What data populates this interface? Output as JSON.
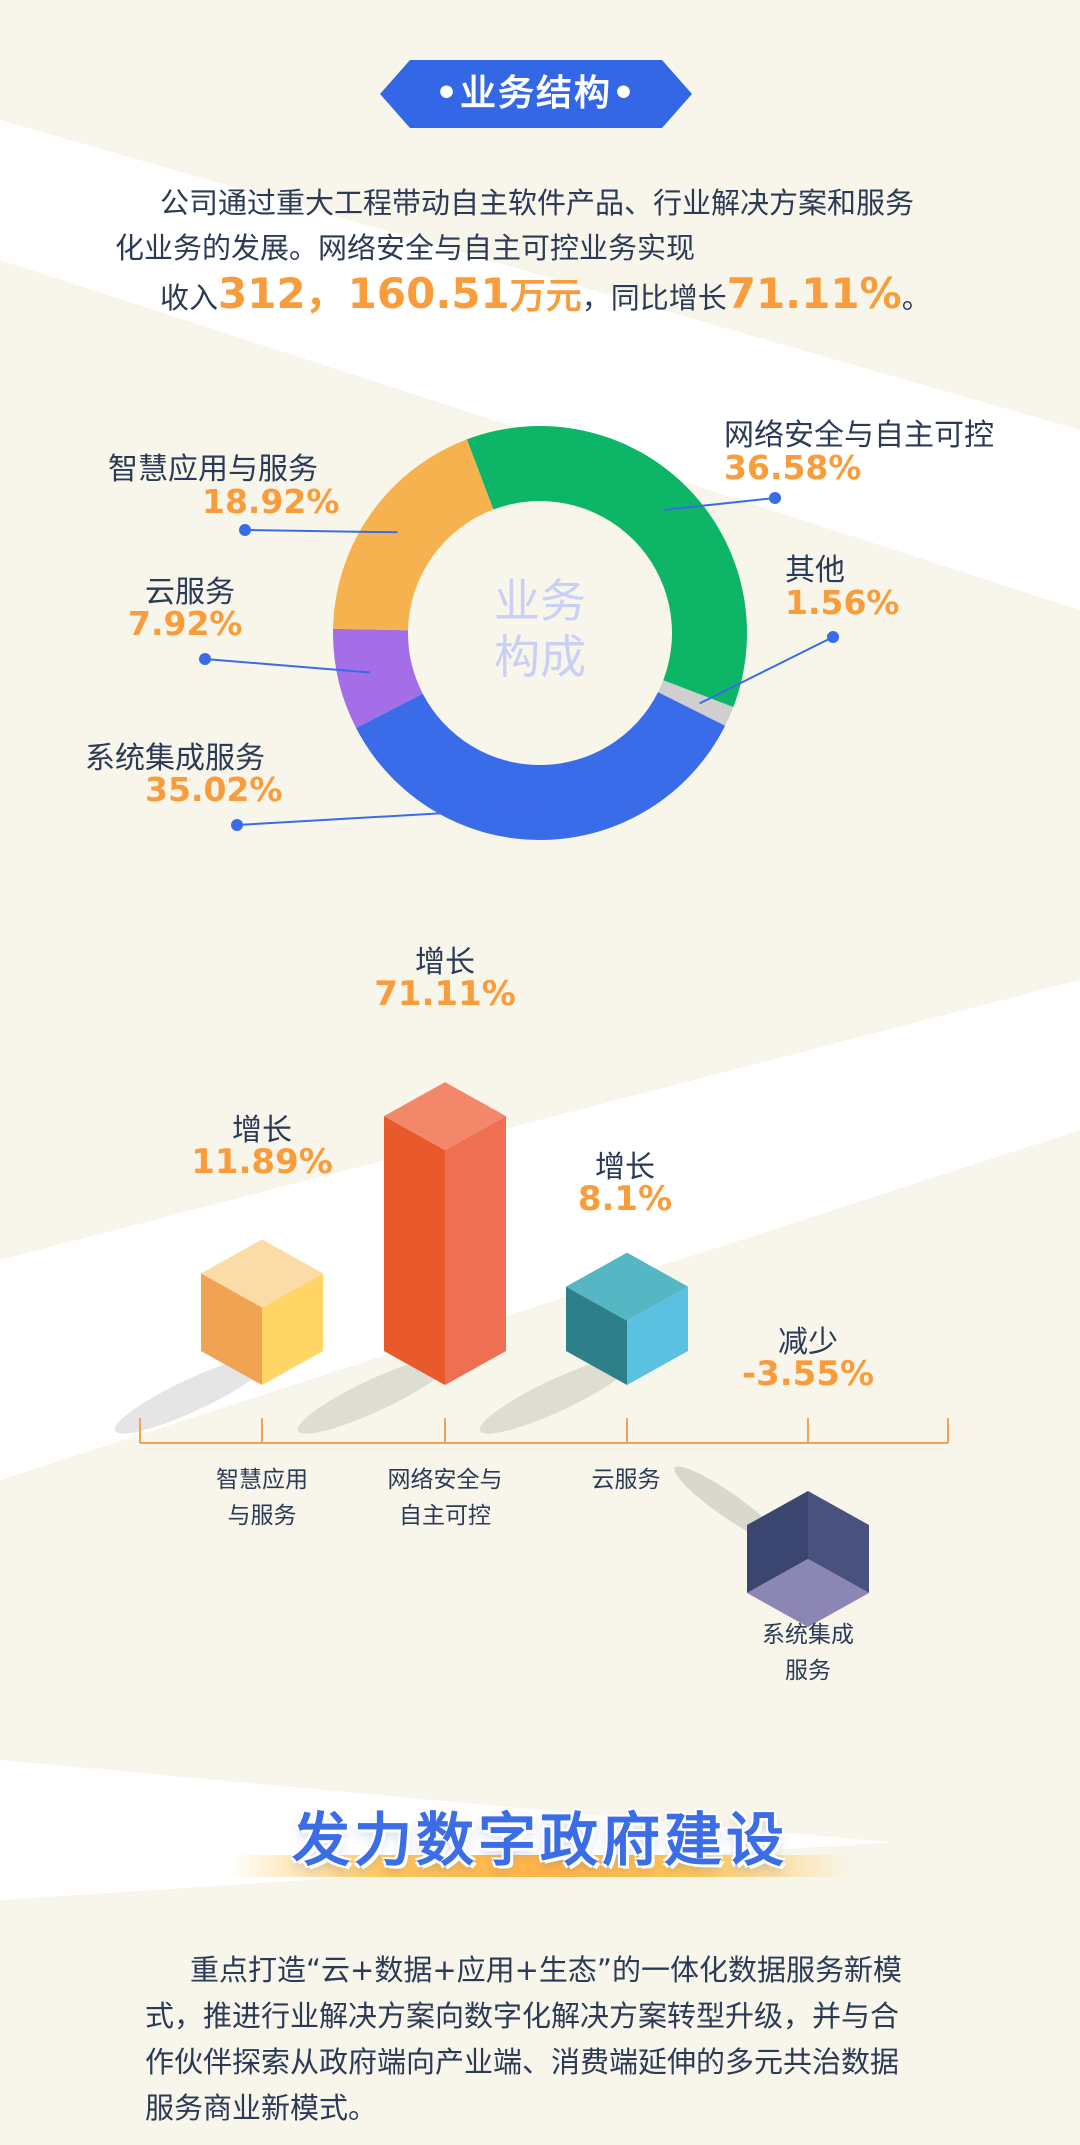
{
  "section1": {
    "title": "•业务结构•",
    "intro": {
      "line1": "公司通过重大工程带动自主软件产品、行业解决方案和服务",
      "line2": "化业务的发展。网络安全与自主可控业务实现",
      "line3_prefix": "收入",
      "revenue_value": "312，160.51",
      "revenue_unit": "万元",
      "line3_mid": "，同比增长",
      "growth_value": "71.11%",
      "line3_suffix": "。"
    }
  },
  "chart_data": [
    {
      "type": "pie",
      "donut": true,
      "center_label": [
        "业务",
        "构成"
      ],
      "slices": [
        {
          "label": "网络安全与自主可控",
          "value": 36.58,
          "display": "36.58%",
          "color": "#0db566"
        },
        {
          "label": "其他",
          "value": 1.56,
          "display": "1.56%",
          "color": "#cfcfcf"
        },
        {
          "label": "系统集成服务",
          "value": 35.02,
          "display": "35.02%",
          "color": "#3a6be8"
        },
        {
          "label": "云服务",
          "value": 7.92,
          "display": "7.92%",
          "color": "#a36ee6"
        },
        {
          "label": "智慧应用与服务",
          "value": 18.92,
          "display": "18.92%",
          "color": "#f6b24e"
        }
      ]
    },
    {
      "type": "bar",
      "style": "3d",
      "categories": [
        {
          "line1": "智慧应用",
          "line2": "与服务"
        },
        {
          "line1": "网络安全与",
          "line2": "自主可控"
        },
        {
          "line1": "云服务",
          "line2": ""
        },
        {
          "line1": "系统集成",
          "line2": "服务"
        }
      ],
      "values": [
        11.89,
        71.11,
        8.1,
        -3.55
      ],
      "heads": [
        "增长",
        "增长",
        "增长",
        "减少"
      ],
      "value_labels": [
        "11.89%",
        "71.11%",
        "8.1%",
        "-3.55%"
      ],
      "colors": [
        {
          "top": "#fbdca6",
          "left": "#f0a353",
          "right": "#ffd566"
        },
        {
          "top": "#f3876a",
          "left": "#e8592c",
          "right": "#ef6f53"
        },
        {
          "top": "#56b7c4",
          "left": "#2d7f8a",
          "right": "#5bc1e0"
        },
        {
          "top": "#8b86b4",
          "left": "#3b4670",
          "right": "#49527f"
        }
      ]
    }
  ],
  "section2": {
    "title": "发力数字政府建设",
    "lines": [
      "重点打造“云+数据+应用+生态”的一体化数据服务新模",
      "式，推进行业解决方案向数字化解决方案转型升级，并与合",
      "作伙伴探索从政府端向产业端、消费端延伸的多元共治数据",
      "服务商业新模式。"
    ]
  }
}
